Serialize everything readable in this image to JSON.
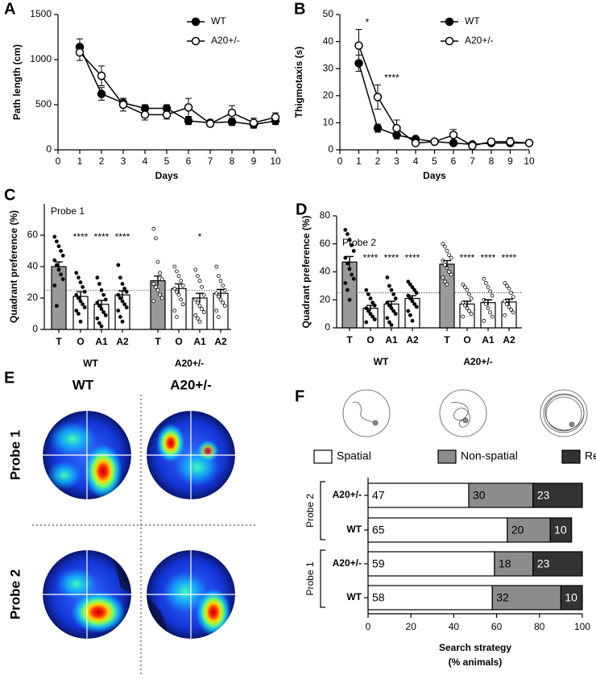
{
  "chart_data": [
    {
      "type": "line",
      "panel": "A",
      "ylabel": "Path length (cm)",
      "xlabel": "Days",
      "x": [
        1,
        2,
        3,
        4,
        5,
        6,
        7,
        8,
        9,
        10
      ],
      "xlim": [
        0,
        10
      ],
      "xticks": [
        0,
        1,
        2,
        3,
        4,
        5,
        6,
        7,
        8,
        9,
        10
      ],
      "ylim": [
        0,
        1500
      ],
      "yticks": [
        0,
        500,
        1000,
        1500
      ],
      "legend": "upper right",
      "series": [
        {
          "name": "WT",
          "color": "#000000",
          "marker_face": "#000000",
          "values": [
            1140,
            620,
            520,
            460,
            460,
            320,
            300,
            310,
            280,
            320
          ],
          "errors": [
            90,
            70,
            50,
            40,
            40,
            40,
            30,
            40,
            40,
            40
          ]
        },
        {
          "name": "A20+/-",
          "color": "#000000",
          "marker_face": "#ffffff",
          "values": [
            1080,
            820,
            500,
            390,
            390,
            470,
            290,
            410,
            300,
            360
          ],
          "errors": [
            90,
            110,
            70,
            60,
            50,
            100,
            30,
            80,
            50,
            50
          ]
        }
      ]
    },
    {
      "type": "line",
      "panel": "B",
      "ylabel": "Thigmotaxis (s)",
      "xlabel": "Days",
      "x": [
        1,
        2,
        3,
        4,
        5,
        6,
        7,
        8,
        9,
        10
      ],
      "xlim": [
        0,
        10
      ],
      "xticks": [
        0,
        1,
        2,
        3,
        4,
        5,
        6,
        7,
        8,
        9,
        10
      ],
      "ylim": [
        0,
        50
      ],
      "yticks": [
        0,
        10,
        20,
        30,
        40,
        50
      ],
      "legend": "upper right",
      "annotations": [
        "*",
        "****",
        null,
        null,
        null,
        null,
        null,
        null,
        null,
        null
      ],
      "series": [
        {
          "name": "WT",
          "color": "#000000",
          "marker_face": "#000000",
          "values": [
            32,
            8,
            5.5,
            4,
            3,
            2.5,
            2,
            2.5,
            2.5,
            2.5
          ],
          "errors": [
            3,
            1.5,
            1.5,
            0.5,
            0.5,
            0.5,
            0.5,
            0.5,
            0.5,
            0.5
          ]
        },
        {
          "name": "A20+/-",
          "color": "#000000",
          "marker_face": "#ffffff",
          "values": [
            38.5,
            19.5,
            8,
            2.5,
            3,
            5.5,
            1.5,
            3,
            3,
            2.5
          ],
          "errors": [
            6,
            4.5,
            3,
            0.5,
            0.5,
            2,
            0.5,
            1,
            1.5,
            0.5
          ]
        }
      ]
    },
    {
      "type": "bar_dots",
      "panel": "C",
      "ylabel": "Quadrant preference (%)",
      "note": "Probe 1",
      "categories": [
        "T",
        "O",
        "A1",
        "A2"
      ],
      "bar_colors": [
        "#999999",
        "#ffffff",
        "#ffffff",
        "#ffffff"
      ],
      "ylim": [
        0,
        80
      ],
      "yticks": [
        0,
        20,
        40,
        60
      ],
      "reference_line": 25,
      "groups": [
        {
          "name": "WT",
          "point_color": "#000000",
          "values": [
            40,
            21,
            16,
            22
          ],
          "errors": [
            3,
            3,
            2.5,
            2.5
          ],
          "significance": [
            null,
            "****",
            "****",
            "****"
          ],
          "points": [
            [
              59,
              56,
              53,
              50,
              47,
              44,
              41,
              38,
              35,
              32,
              28,
              15
            ],
            [
              36,
              33,
              30,
              27,
              24,
              22,
              20,
              18,
              16,
              14,
              12,
              10,
              5
            ],
            [
              33,
              29,
              25,
              22,
              19,
              17,
              15,
              13,
              11,
              9,
              7,
              4,
              2
            ],
            [
              41,
              33,
              29,
              26,
              24,
              22,
              20,
              18,
              16,
              14,
              12,
              8,
              5
            ]
          ]
        },
        {
          "name": "A20+/-",
          "point_color": "#ffffff",
          "values": [
            31,
            26,
            20,
            23
          ],
          "errors": [
            3,
            3,
            3,
            2.5
          ],
          "significance": [
            null,
            null,
            "*",
            null
          ],
          "points": [
            [
              64,
              58,
              43,
              36,
              32,
              29,
              27,
              25,
              22,
              20,
              18
            ],
            [
              40,
              37,
              34,
              31,
              28,
              26,
              24,
              22,
              19,
              16,
              12,
              8
            ],
            [
              38,
              34,
              31,
              27,
              22,
              19,
              17,
              15,
              13,
              11,
              9,
              7,
              5
            ],
            [
              40,
              34,
              31,
              28,
              25,
              23,
              21,
              19,
              17,
              15,
              12,
              8
            ]
          ]
        }
      ]
    },
    {
      "type": "bar_dots",
      "panel": "D",
      "ylabel": "Quadrant preference (%)",
      "note": "Probe 2",
      "categories": [
        "T",
        "O",
        "A1",
        "A2"
      ],
      "bar_colors": [
        "#999999",
        "#ffffff",
        "#ffffff",
        "#ffffff"
      ],
      "ylim": [
        0,
        80
      ],
      "yticks": [
        0,
        20,
        40,
        60,
        80
      ],
      "reference_line": 25,
      "groups": [
        {
          "name": "WT",
          "point_color": "#000000",
          "values": [
            47,
            14,
            17,
            21
          ],
          "errors": [
            4,
            2,
            2,
            2
          ],
          "significance": [
            null,
            "****",
            "****",
            "****"
          ],
          "points": [
            [
              70,
              67,
              63,
              59,
              55,
              50,
              46,
              42,
              38,
              35,
              32,
              27,
              20
            ],
            [
              27,
              24,
              21,
              18,
              16,
              14,
              12,
              10,
              8,
              6,
              4
            ],
            [
              36,
              30,
              27,
              24,
              21,
              18,
              16,
              14,
              12,
              10,
              7,
              4,
              2
            ],
            [
              33,
              31,
              29,
              27,
              25,
              23,
              21,
              19,
              17,
              15,
              12,
              9,
              5
            ]
          ]
        },
        {
          "name": "A20+/-",
          "point_color": "#ffffff",
          "values": [
            45.5,
            17,
            18,
            18.5
          ],
          "errors": [
            2.5,
            2,
            2,
            2
          ],
          "significance": [
            null,
            "****",
            "****",
            "****"
          ],
          "points": [
            [
              60,
              58,
              55,
              52,
              50,
              48,
              45,
              43,
              40,
              38,
              36,
              33,
              31
            ],
            [
              31,
              29,
              27,
              24,
              21,
              18,
              16,
              14,
              12,
              10,
              8
            ],
            [
              35,
              32,
              29,
              26,
              23,
              20,
              17,
              14,
              11,
              8,
              5
            ],
            [
              32,
              30,
              28,
              25,
              22,
              19,
              17,
              15,
              13,
              11,
              9
            ]
          ]
        }
      ]
    },
    {
      "type": "stacked_barh",
      "panel": "F",
      "xlabel": [
        "Search strategy",
        "(% animals)"
      ],
      "categories": [
        "A20+/-",
        "WT",
        "A20+/-",
        "WT"
      ],
      "category_groups": [
        "Probe 2",
        "Probe 1"
      ],
      "xlim": [
        0,
        100
      ],
      "xticks": [
        0,
        20,
        40,
        60,
        80,
        100
      ],
      "legend": "top",
      "series": [
        {
          "name": "Spatial",
          "color": "#ffffff",
          "label_color": "#000000",
          "values": [
            47,
            65,
            59,
            58
          ]
        },
        {
          "name": "Non-spatial",
          "color": "#8c8c8c",
          "label_color": "#000000",
          "values": [
            30,
            20,
            18,
            32
          ]
        },
        {
          "name": "Repetitive",
          "color": "#333333",
          "label_color": "#ffffff",
          "values": [
            23,
            10,
            23,
            10
          ]
        }
      ]
    }
  ],
  "heatmap_panel": {
    "panel": "E",
    "columns": [
      "WT",
      "A20+/-"
    ],
    "rows": [
      "Probe 1",
      "Probe 2"
    ]
  }
}
